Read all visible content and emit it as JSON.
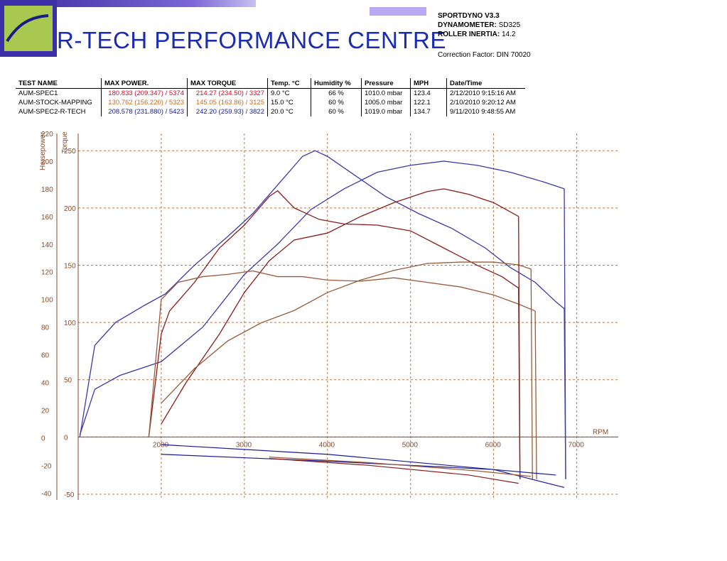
{
  "header": {
    "company_name": "R-TECH PERFORMANCE CENTRE",
    "software": "SPORTDYNO V3.3",
    "dynamometer_label": "DYNAMOMETER:",
    "dynamometer_value": "SD325",
    "roller_label": "ROLLER INERTIA:",
    "roller_value": "14.2",
    "correction": "Correction Factor: DIN 70020"
  },
  "table": {
    "headers": [
      "TEST NAME",
      "MAX POWER.",
      "MAX TORQUE",
      "Temp. °C",
      "Humidity %",
      "Pressure",
      "MPH",
      "Date/Time"
    ],
    "rows": [
      {
        "name": "AUM-SPEC1",
        "power": "180.833 (209.347) / 5374",
        "torque": "214.27 (234.50) / 3327",
        "temp": "9.0 °C",
        "humidity": "66 %",
        "pressure": "1010.0 mbar",
        "mph": "123.4",
        "date": "2/12/2010 9:15:16 AM",
        "color": "#c8102e"
      },
      {
        "name": "AUM-STOCK-MAPPING",
        "power": "130.762 (156.220) / 5323",
        "torque": "145.05 (163.86) / 3125",
        "temp": "15.0 °C",
        "humidity": "60 %",
        "pressure": "1005.0 mbar",
        "mph": "122.1",
        "date": "2/10/2010 9:20:12 AM",
        "color": "#d2691e"
      },
      {
        "name": "AUM-SPEC2-R-TECH",
        "power": "208.578 (231.880) / 5423",
        "torque": "242.20 (259.93) / 3822",
        "temp": "20.0 °C",
        "humidity": "60 %",
        "pressure": "1019.0 mbar",
        "mph": "134.7",
        "date": "9/11/2010 9:48:55 AM",
        "color": "#1a1a9a"
      }
    ]
  },
  "chart_data": {
    "type": "line",
    "xlabel": "RPM",
    "ylabel_left": "Horsepower",
    "ylabel_right": "Torque",
    "xlim": [
      1000,
      7500
    ],
    "hp_lim": [
      -45,
      220
    ],
    "tq_lim": [
      -55,
      265
    ],
    "x_ticks": [
      2000,
      3000,
      4000,
      5000,
      6000,
      7000
    ],
    "hp_ticks": [
      -40,
      -20,
      0,
      20,
      40,
      60,
      80,
      100,
      120,
      140,
      160,
      180,
      200,
      220
    ],
    "tq_ticks": [
      -50,
      0,
      50,
      100,
      150,
      200,
      250
    ],
    "grid": true,
    "series": [
      {
        "name": "AUM-SPEC2-R-TECH",
        "metric": "torque",
        "color": "#3a3aa8",
        "x": [
          1020,
          1200,
          1450,
          1800,
          2050,
          2400,
          2800,
          3100,
          3400,
          3700,
          3850,
          4000,
          4300,
          4700,
          5100,
          5500,
          5900,
          6200,
          6500,
          6750,
          6850
        ],
        "y": [
          0,
          80,
          100,
          115,
          125,
          150,
          175,
          195,
          220,
          245,
          250,
          245,
          230,
          210,
          195,
          182,
          165,
          148,
          135,
          118,
          112
        ]
      },
      {
        "name": "AUM-SPEC2-R-TECH",
        "metric": "power",
        "color": "#3a3aa8",
        "x": [
          1020,
          1200,
          1500,
          2000,
          2500,
          3000,
          3400,
          3800,
          4200,
          4600,
          5000,
          5400,
          5800,
          6200,
          6600,
          6850
        ],
        "y": [
          2,
          35,
          45,
          55,
          80,
          118,
          140,
          165,
          180,
          192,
          197,
          200,
          197,
          192,
          185,
          180
        ]
      },
      {
        "name": "AUM-SPEC1",
        "metric": "torque",
        "color": "#8b1c1c",
        "x": [
          1850,
          2000,
          2100,
          2400,
          2700,
          3000,
          3300,
          3400,
          3600,
          3900,
          4200,
          4600,
          5000,
          5400,
          5800,
          6100,
          6300
        ],
        "y": [
          0,
          90,
          110,
          135,
          165,
          185,
          210,
          215,
          200,
          190,
          186,
          185,
          180,
          165,
          150,
          140,
          130
        ]
      },
      {
        "name": "AUM-SPEC1",
        "metric": "power",
        "color": "#8b1c1c",
        "x": [
          2000,
          2300,
          2700,
          3000,
          3300,
          3600,
          4000,
          4400,
          4800,
          5200,
          5400,
          5700,
          6000,
          6300
        ],
        "y": [
          10,
          40,
          75,
          105,
          128,
          143,
          148,
          160,
          170,
          178,
          180,
          176,
          170,
          160
        ]
      },
      {
        "name": "AUM-STOCK-MAPPING",
        "metric": "torque",
        "color": "#9a5a38",
        "x": [
          1850,
          2000,
          2200,
          2500,
          2800,
          3100,
          3400,
          3700,
          4000,
          4400,
          4800,
          5200,
          5600,
          6000,
          6300,
          6500
        ],
        "y": [
          0,
          120,
          135,
          140,
          142,
          145,
          140,
          140,
          137,
          136,
          139,
          135,
          131,
          124,
          116,
          110
        ]
      },
      {
        "name": "AUM-STOCK-MAPPING",
        "metric": "power",
        "color": "#9a5a38",
        "x": [
          2000,
          2400,
          2800,
          3200,
          3600,
          4000,
          4400,
          4800,
          5200,
          5600,
          6000,
          6300,
          6450
        ],
        "y": [
          25,
          50,
          70,
          83,
          92,
          105,
          114,
          121,
          126,
          127,
          127,
          125,
          122
        ]
      }
    ],
    "loss_series": [
      {
        "name": "AUM-SPEC2-R-TECH",
        "color": "#1a1a9a",
        "x": [
          2000,
          4000,
          6000,
          6750
        ],
        "y": [
          -5,
          -12,
          -23,
          -27
        ]
      },
      {
        "name": "AUM-SPEC2-R-TECH",
        "color": "#1a1a9a",
        "x": [
          2000,
          4000,
          6000,
          6850
        ],
        "y": [
          -12,
          -17,
          -23,
          -36
        ]
      },
      {
        "name": "AUM-SPEC1",
        "color": "#8b1c1c",
        "x": [
          3300,
          4500,
          5700,
          6300
        ],
        "y": [
          -15,
          -20,
          -27,
          -33
        ]
      },
      {
        "name": "AUM-STOCK-MAPPING",
        "color": "#9a5a38",
        "x": [
          3300,
          4500,
          5800,
          6450
        ],
        "y": [
          -14,
          -18,
          -24,
          -28
        ]
      }
    ]
  }
}
